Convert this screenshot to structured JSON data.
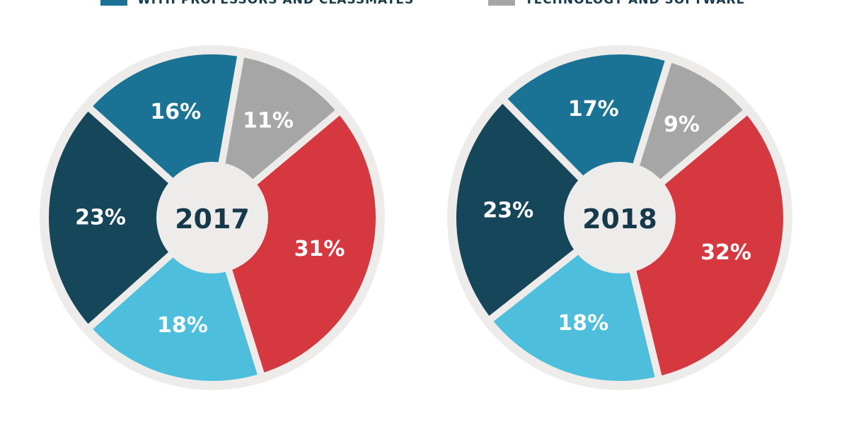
{
  "legend": [
    {
      "label": "WITH PROFESSORS AND CLASSMATES",
      "color": "#1a7394"
    },
    {
      "label": "TECHNOLOGY AND SOFTWARE",
      "color": "#a6a6a6"
    }
  ],
  "chart_data": [
    {
      "type": "pie",
      "center_label": "2017",
      "slices": [
        {
          "value": 31,
          "label": "31%",
          "color": "#d6383f"
        },
        {
          "value": 18,
          "label": "18%",
          "color": "#4dbedc"
        },
        {
          "value": 23,
          "label": "23%",
          "color": "#15465a"
        },
        {
          "value": 16,
          "label": "16%",
          "color": "#1a7394"
        },
        {
          "value": 11,
          "label": "11%",
          "color": "#a6a6a6"
        }
      ]
    },
    {
      "type": "pie",
      "center_label": "2018",
      "slices": [
        {
          "value": 32,
          "label": "32%",
          "color": "#d6383f"
        },
        {
          "value": 18,
          "label": "18%",
          "color": "#4dbedc"
        },
        {
          "value": 23,
          "label": "23%",
          "color": "#15465a"
        },
        {
          "value": 17,
          "label": "17%",
          "color": "#1a7394"
        },
        {
          "value": 9,
          "label": "9%",
          "color": "#a6a6a6"
        }
      ]
    }
  ]
}
